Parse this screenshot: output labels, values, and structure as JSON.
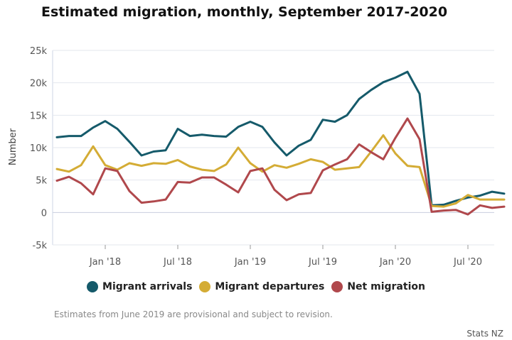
{
  "chart_data": {
    "type": "line",
    "title": "Estimated migration, monthly, September 2017-2020",
    "xlabel": "",
    "ylabel": "Number",
    "ylim": [
      -5000,
      25000
    ],
    "yticks": [
      -5000,
      0,
      5000,
      10000,
      15000,
      20000,
      25000
    ],
    "ytick_labels": [
      "-5k",
      "0",
      "5k",
      "10k",
      "15k",
      "20k",
      "25k"
    ],
    "x_start": "2017-09",
    "x_ticks": [
      {
        "index": 4,
        "label": "Jan '18"
      },
      {
        "index": 10,
        "label": "Jul '18"
      },
      {
        "index": 16,
        "label": "Jan '19"
      },
      {
        "index": 22,
        "label": "Jul '19"
      },
      {
        "index": 28,
        "label": "Jan '20"
      },
      {
        "index": 34,
        "label": "Jul '20"
      }
    ],
    "grid": true,
    "legend_position": "bottom",
    "series": [
      {
        "name": "Migrant arrivals",
        "color": "#155a6a",
        "values": [
          11600,
          11800,
          11800,
          13100,
          14100,
          12900,
          10900,
          8800,
          9400,
          9600,
          12900,
          11800,
          12000,
          11800,
          11700,
          13200,
          14000,
          13200,
          10800,
          8800,
          10300,
          11200,
          14300,
          14000,
          15000,
          17500,
          18900,
          20100,
          20800,
          21700,
          18300,
          1100,
          1200,
          1800,
          2300,
          2600,
          3200,
          2900
        ]
      },
      {
        "name": "Migrant departures",
        "color": "#d4ac35",
        "values": [
          6700,
          6300,
          7300,
          10200,
          7300,
          6600,
          7600,
          7200,
          7600,
          7500,
          8100,
          7100,
          6600,
          6400,
          7400,
          10000,
          7600,
          6300,
          7300,
          6900,
          7500,
          8200,
          7800,
          6600,
          6800,
          7000,
          9400,
          11900,
          9100,
          7200,
          7000,
          1000,
          900,
          1400,
          2700,
          2000,
          2000,
          2000
        ]
      },
      {
        "name": "Net migration",
        "color": "#b0484c",
        "values": [
          4900,
          5500,
          4500,
          2800,
          6800,
          6400,
          3300,
          1500,
          1700,
          2000,
          4700,
          4600,
          5400,
          5400,
          4300,
          3100,
          6400,
          6800,
          3500,
          1900,
          2800,
          3000,
          6500,
          7400,
          8200,
          10500,
          9300,
          8200,
          11500,
          14500,
          11300,
          100,
          300,
          400,
          -300,
          1100,
          700,
          900
        ]
      }
    ]
  },
  "footnote": "Estimates from June 2019 are provisional and subject to revision.",
  "credit": "Stats NZ"
}
